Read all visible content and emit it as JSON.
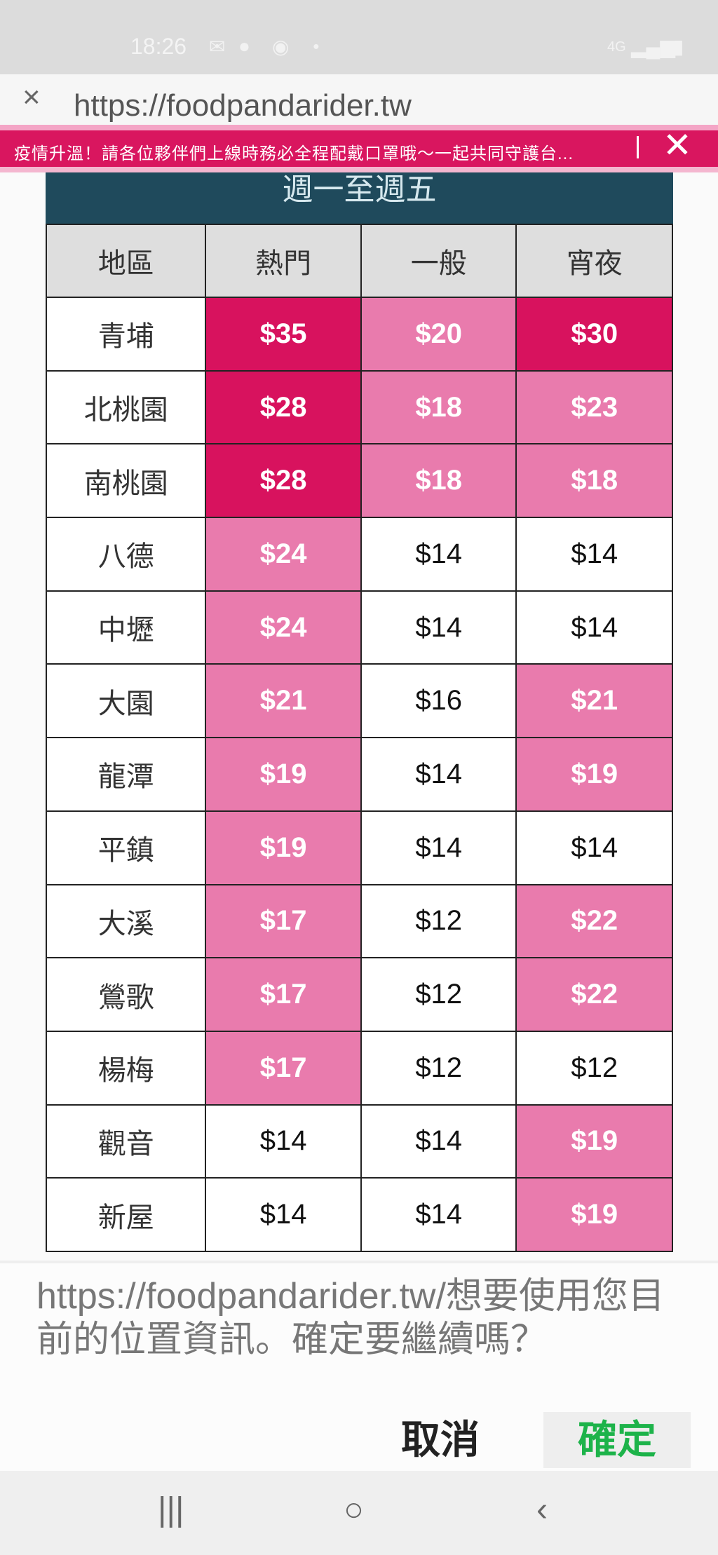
{
  "status_bar": {
    "time": "18:26",
    "icons": [
      "mail-icon",
      "line-icon",
      "messenger-icon",
      "dot-icon",
      "4g-icon",
      "signal-icon",
      "battery-icon"
    ]
  },
  "browser": {
    "url": "https://foodpandarider.tw",
    "close_label": "×"
  },
  "banner": {
    "message": "疫情升溫！請各位夥伴們上線時務必全程配戴口罩哦～一起共同守護台...",
    "close_label": "✕",
    "color": "#d9165f"
  },
  "table": {
    "title": "週一至週五",
    "headers": [
      "地區",
      "熱門",
      "一般",
      "宵夜"
    ],
    "rows": [
      {
        "area": "青埔",
        "values": [
          "$35",
          "$20",
          "$30"
        ],
        "tiers": [
          "hot",
          "mid",
          "hot"
        ]
      },
      {
        "area": "北桃園",
        "values": [
          "$28",
          "$18",
          "$23"
        ],
        "tiers": [
          "hot",
          "mid",
          "mid"
        ]
      },
      {
        "area": "南桃園",
        "values": [
          "$28",
          "$18",
          "$18"
        ],
        "tiers": [
          "hot",
          "mid",
          "mid"
        ]
      },
      {
        "area": "八德",
        "values": [
          "$24",
          "$14",
          "$14"
        ],
        "tiers": [
          "mid",
          "none",
          "none"
        ]
      },
      {
        "area": "中壢",
        "values": [
          "$24",
          "$14",
          "$14"
        ],
        "tiers": [
          "mid",
          "none",
          "none"
        ]
      },
      {
        "area": "大園",
        "values": [
          "$21",
          "$16",
          "$21"
        ],
        "tiers": [
          "mid",
          "none",
          "mid"
        ]
      },
      {
        "area": "龍潭",
        "values": [
          "$19",
          "$14",
          "$19"
        ],
        "tiers": [
          "mid",
          "none",
          "mid"
        ]
      },
      {
        "area": "平鎮",
        "values": [
          "$19",
          "$14",
          "$14"
        ],
        "tiers": [
          "mid",
          "none",
          "none"
        ]
      },
      {
        "area": "大溪",
        "values": [
          "$17",
          "$12",
          "$22"
        ],
        "tiers": [
          "mid",
          "none",
          "mid"
        ]
      },
      {
        "area": "鶯歌",
        "values": [
          "$17",
          "$12",
          "$22"
        ],
        "tiers": [
          "mid",
          "none",
          "mid"
        ]
      },
      {
        "area": "楊梅",
        "values": [
          "$17",
          "$12",
          "$12"
        ],
        "tiers": [
          "mid",
          "none",
          "none"
        ]
      },
      {
        "area": "觀音",
        "values": [
          "$14",
          "$14",
          "$19"
        ],
        "tiers": [
          "none",
          "none",
          "mid"
        ]
      },
      {
        "area": "新屋",
        "values": [
          "$14",
          "$14",
          "$19"
        ],
        "tiers": [
          "none",
          "none",
          "mid"
        ]
      }
    ],
    "colors": {
      "hot": "#d8125e",
      "mid": "#e97bad",
      "none": "#ffffff",
      "title_bg": "#1f4a5c"
    }
  },
  "dialog": {
    "message": "https://foodpandarider.tw/想要使用您目前的位置資訊。確定要繼續嗎？",
    "cancel_label": "取消",
    "confirm_label": "確定",
    "confirm_color": "#1db34a"
  },
  "nav": {
    "recents": "|||",
    "home": "○",
    "back": "‹"
  }
}
